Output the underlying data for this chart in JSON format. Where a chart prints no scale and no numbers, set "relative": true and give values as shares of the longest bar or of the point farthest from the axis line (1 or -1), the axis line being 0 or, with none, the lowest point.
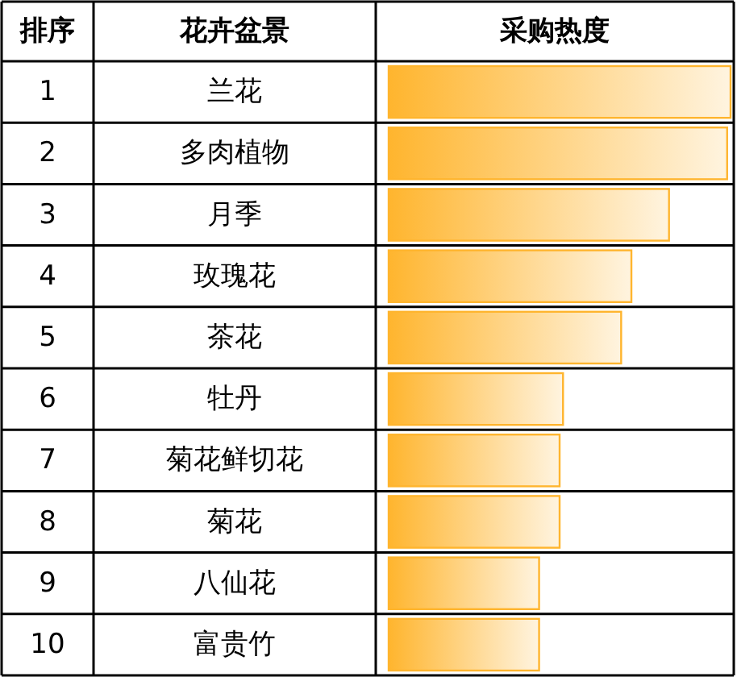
{
  "chart_data": {
    "type": "bar",
    "orientation": "horizontal",
    "relative": true,
    "xlabel": "采购热度",
    "ylabel": "花卉盆景",
    "color": "#ffb52e",
    "categories": [
      "兰花",
      "多肉植物",
      "月季",
      "玫瑰花",
      "茶花",
      "牡丹",
      "菊花鲜切花",
      "菊花",
      "八仙花",
      "富贵竹"
    ],
    "values": [
      1,
      0.99,
      0.82,
      0.71,
      0.68,
      0.51,
      0.5,
      0.5,
      0.44,
      0.44
    ],
    "annotations": [
      "排序",
      "1",
      "2",
      "3",
      "4",
      "5",
      "6",
      "7",
      "8",
      "9",
      "10"
    ]
  }
}
